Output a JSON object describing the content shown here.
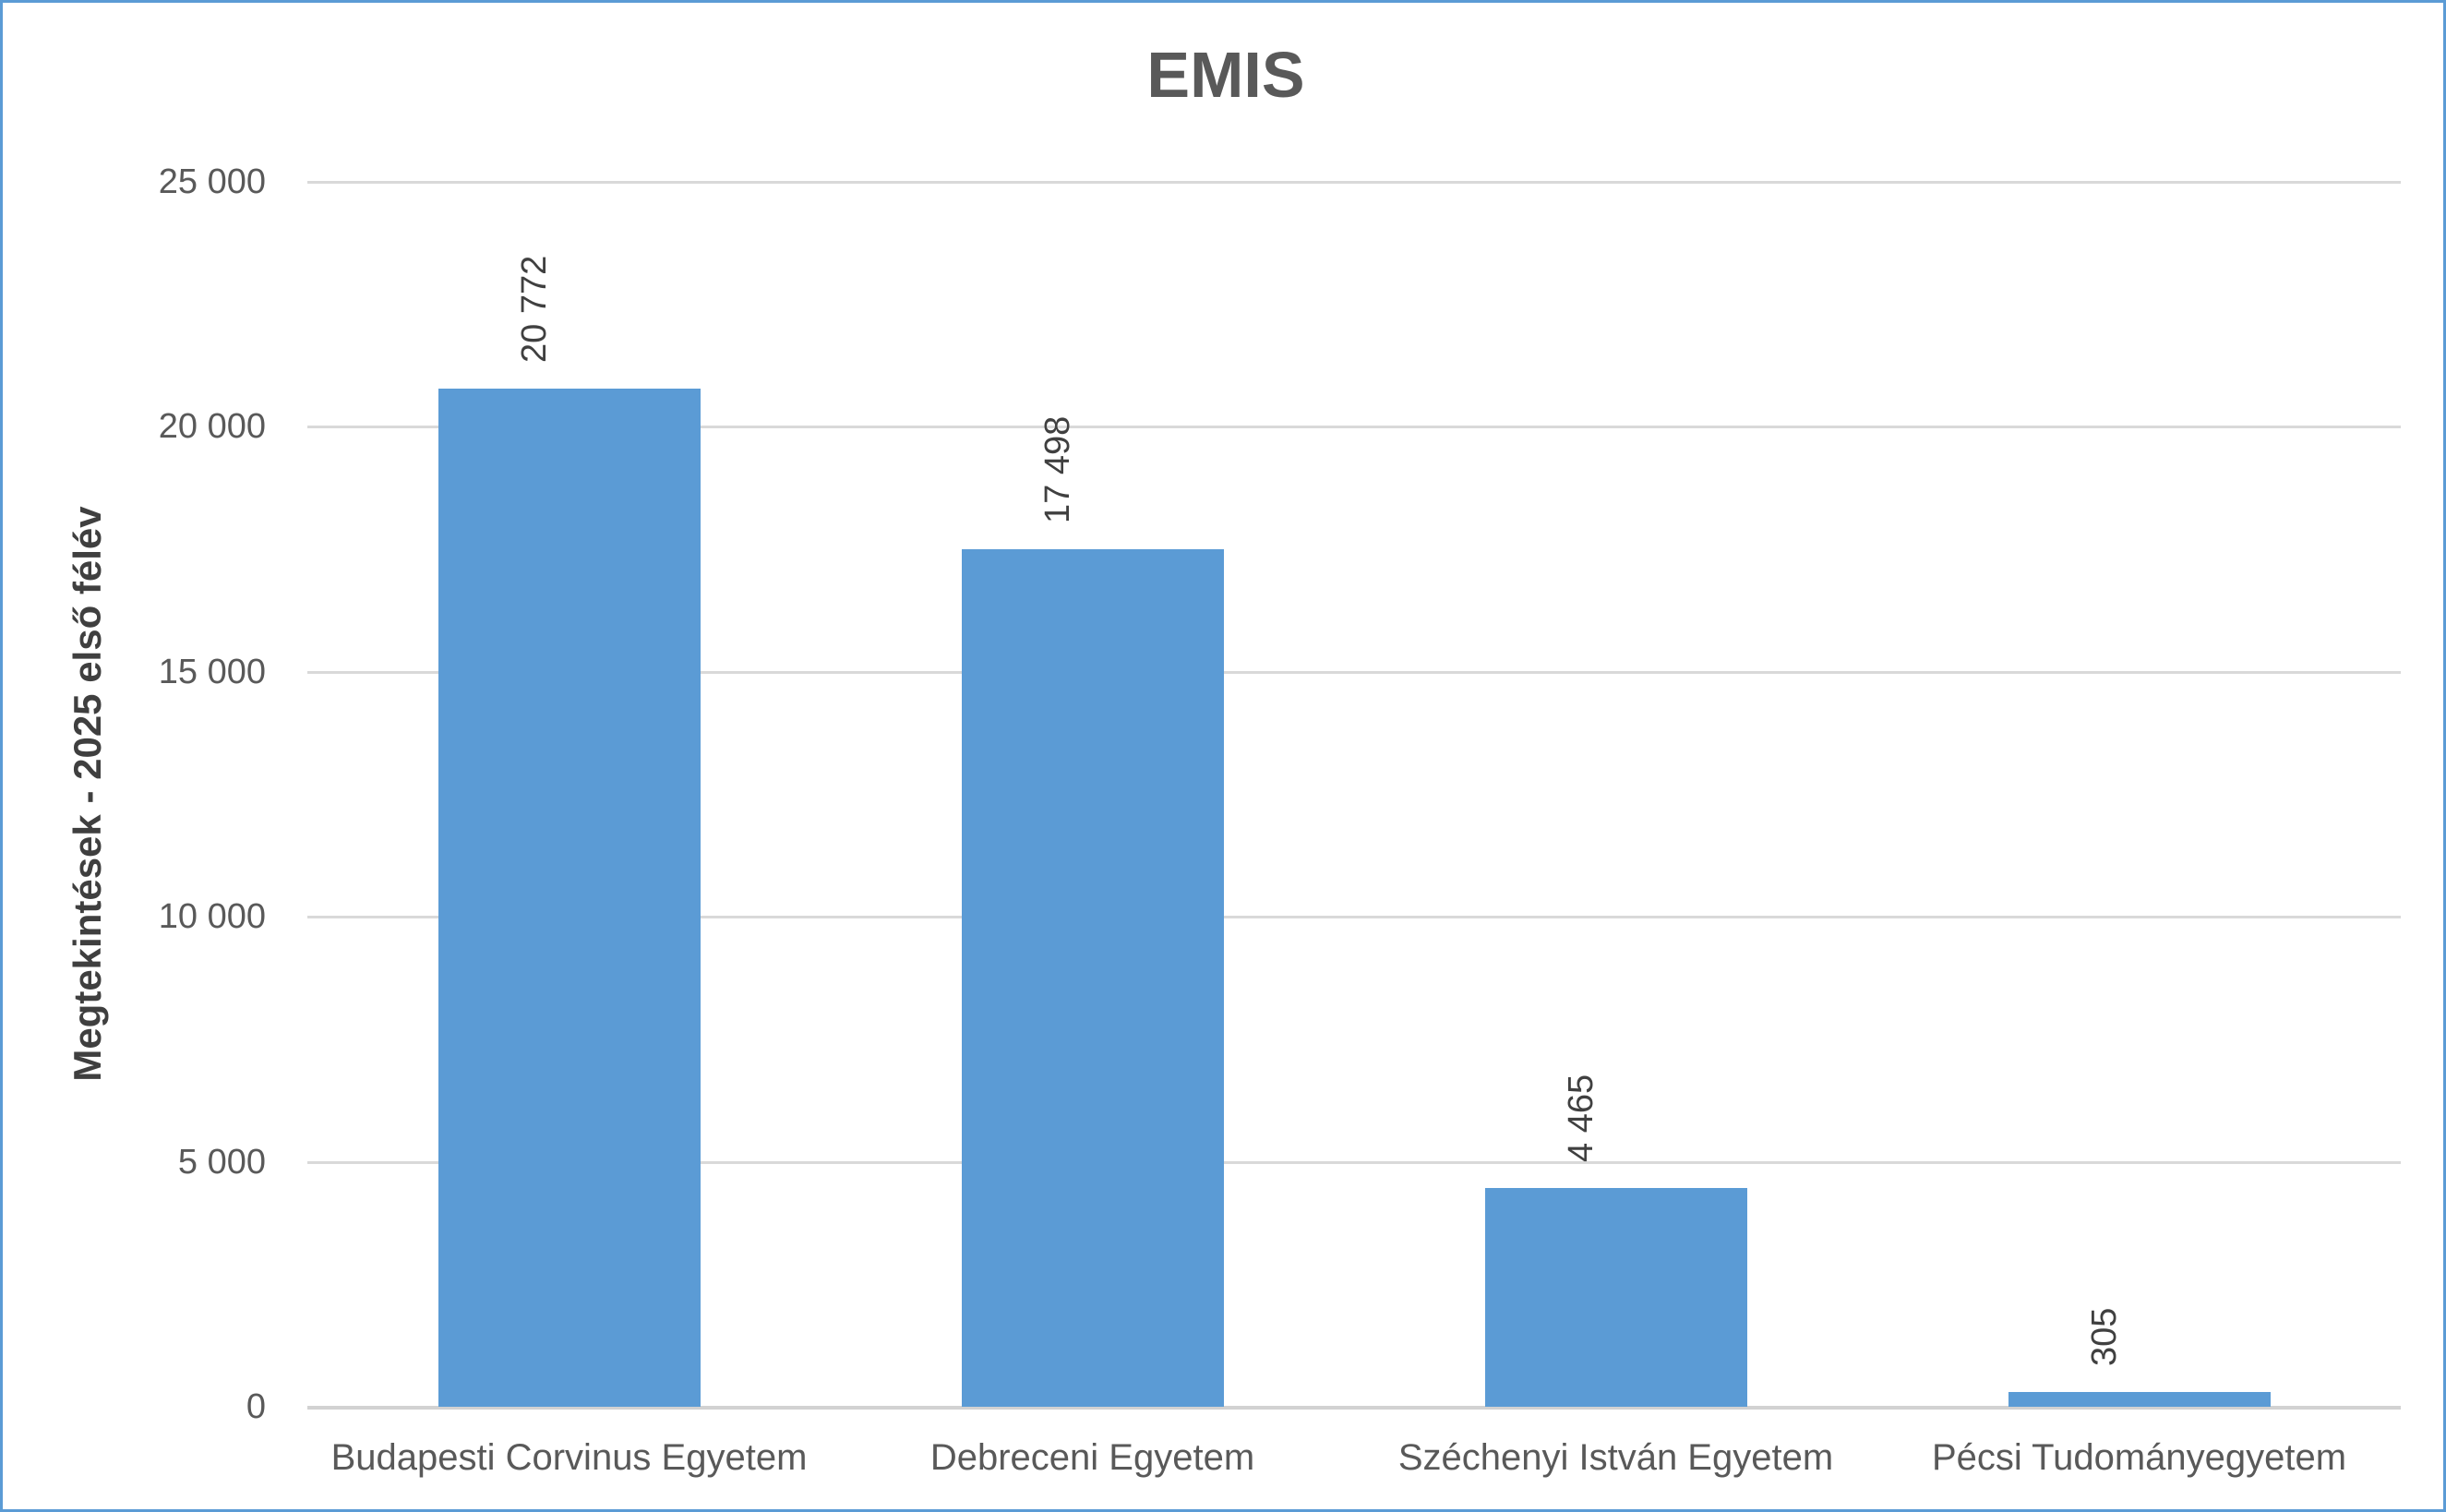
{
  "chart_data": {
    "type": "bar",
    "title": "EMIS",
    "xlabel": "",
    "ylabel": "Megtekintések - 2025 első félév",
    "categories": [
      "Budapesti Corvinus Egyetem",
      "Debreceni Egyetem",
      "Széchenyi István Egyetem",
      "Pécsi Tudományegyetem"
    ],
    "values": [
      20772,
      17498,
      4465,
      305
    ],
    "value_labels": [
      "20 772",
      "17 498",
      "4 465",
      "305"
    ],
    "ylim": [
      0,
      25000
    ],
    "y_ticks": [
      {
        "value": 0,
        "label": "0"
      },
      {
        "value": 5000,
        "label": "5 000"
      },
      {
        "value": 10000,
        "label": "10 000"
      },
      {
        "value": 15000,
        "label": "15 000"
      },
      {
        "value": 20000,
        "label": "20 000"
      },
      {
        "value": 25000,
        "label": "25 000"
      }
    ],
    "grid": true,
    "legend_position": "none",
    "data_label_rotation": 270,
    "colors": {
      "bar": "#5B9BD5",
      "frame_border": "#5B9BD5",
      "title_text": "#595959",
      "axis_text": "#595959",
      "data_label_text": "#404040",
      "y_title_text": "#3f3f3f",
      "gridline": "#D9D9D9",
      "axis_line": "#D2D2D2",
      "background": "#FFFFFF"
    }
  }
}
